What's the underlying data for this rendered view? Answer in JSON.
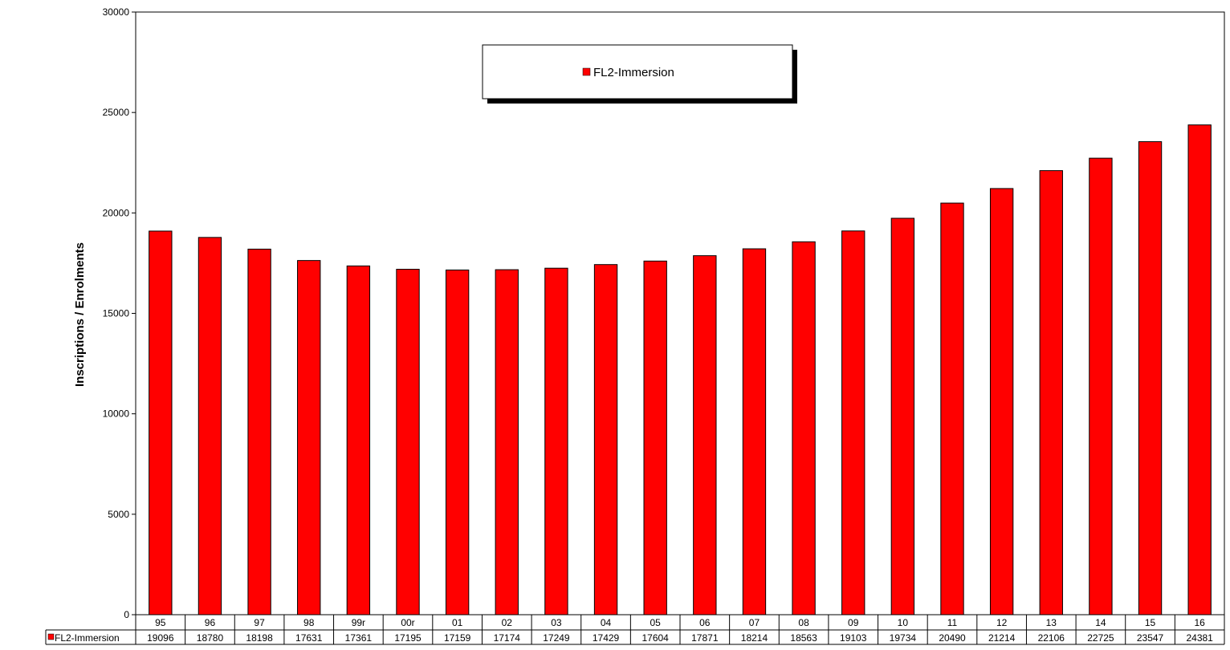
{
  "chart_data": {
    "type": "bar",
    "title": "",
    "xlabel": "",
    "ylabel": "Inscriptions / Enrolments",
    "ylim": [
      0,
      30000
    ],
    "yticks": [
      0,
      5000,
      10000,
      15000,
      20000,
      25000,
      30000
    ],
    "grid": false,
    "legend_position": "top-center",
    "categories": [
      "95",
      "96",
      "97",
      "98",
      "99r",
      "00r",
      "01",
      "02",
      "03",
      "04",
      "05",
      "06",
      "07",
      "08",
      "09",
      "10",
      "11",
      "12",
      "13",
      "14",
      "15",
      "16"
    ],
    "series": [
      {
        "name": "FL2-Immersion",
        "color": "#ff0000",
        "values": [
          19096,
          18780,
          18198,
          17631,
          17361,
          17195,
          17159,
          17174,
          17249,
          17429,
          17604,
          17871,
          18214,
          18563,
          19103,
          19734,
          20490,
          21214,
          22106,
          22725,
          23547,
          24381
        ]
      }
    ],
    "data_table": true
  }
}
